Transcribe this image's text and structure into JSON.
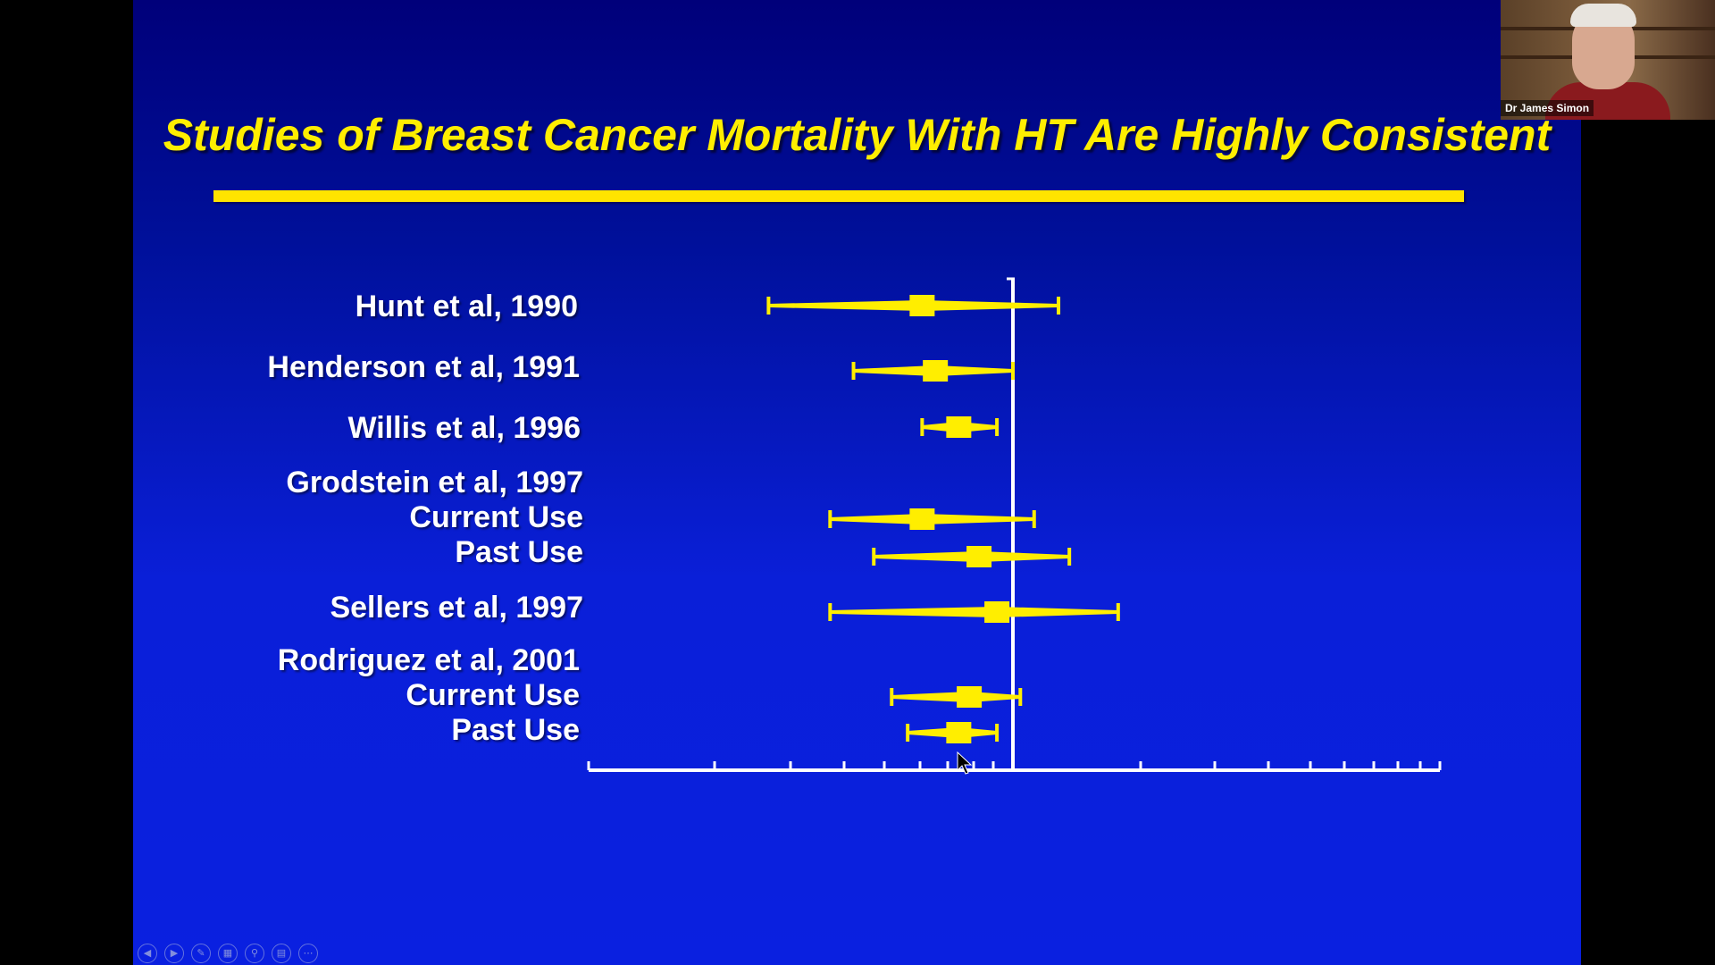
{
  "slide": {
    "title": "Studies of Breast Cancer Mortality With HT Are Highly Consistent",
    "labels": [
      "Hunt et al, 1990",
      "Henderson et al, 1991",
      "Willis et al, 1996",
      "Grodstein et al, 1997",
      "Current Use",
      "Past Use",
      "Sellers et al, 1997",
      "Rodriguez et al, 2001",
      "Current Use",
      "Past Use"
    ]
  },
  "colors": {
    "accent": "#ffee00",
    "marker": "#ffee00",
    "axis": "#ffffff",
    "background": "#0a1fd8"
  },
  "chart_data": {
    "type": "forest",
    "reference_value": 1.0,
    "scale": "log",
    "tick_labels_printed": false,
    "studies": [
      {
        "name": "Hunt et al, 1990",
        "subgroup": "",
        "estimate": 0.55,
        "low": 0.2,
        "high": 1.35
      },
      {
        "name": "Henderson et al, 1991",
        "subgroup": "",
        "estimate": 0.6,
        "low": 0.35,
        "high": 1.0
      },
      {
        "name": "Willis et al, 1996",
        "subgroup": "",
        "estimate": 0.7,
        "low": 0.55,
        "high": 0.9
      },
      {
        "name": "Grodstein et al, 1997",
        "subgroup": "Current Use",
        "estimate": 0.55,
        "low": 0.3,
        "high": 1.15
      },
      {
        "name": "Grodstein et al, 1997",
        "subgroup": "Past Use",
        "estimate": 0.8,
        "low": 0.4,
        "high": 1.45
      },
      {
        "name": "Sellers et al, 1997",
        "subgroup": "",
        "estimate": 0.9,
        "low": 0.3,
        "high": 2.0
      },
      {
        "name": "Rodriguez et al, 2001",
        "subgroup": "Current Use",
        "estimate": 0.75,
        "low": 0.45,
        "high": 1.05
      },
      {
        "name": "Rodriguez et al, 2001",
        "subgroup": "Past Use",
        "estimate": 0.7,
        "low": 0.5,
        "high": 0.9
      }
    ]
  },
  "webcam": {
    "name": "Dr James Simon"
  },
  "toolbar": {
    "icons": [
      "prev-icon",
      "next-icon",
      "pen-icon",
      "slides-icon",
      "zoom-icon",
      "subtitles-icon",
      "more-icon"
    ],
    "glyphs": [
      "◀",
      "▶",
      "✎",
      "▦",
      "⚲",
      "▤",
      "⋯"
    ]
  }
}
